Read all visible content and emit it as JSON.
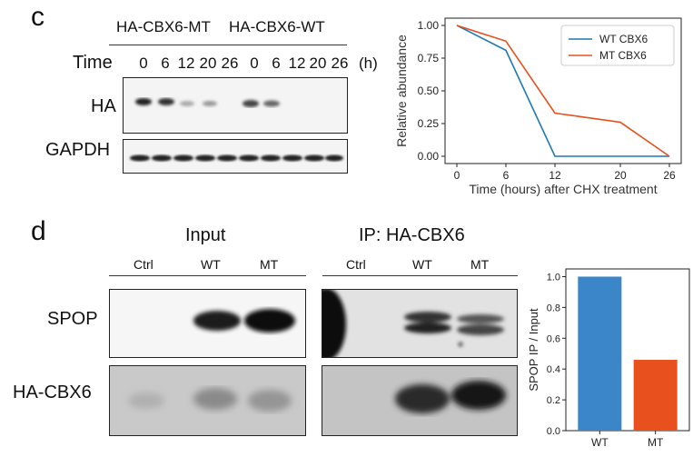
{
  "panel_c": {
    "label": "c",
    "groups": [
      "HA-CBX6-MT",
      "HA-CBX6-WT"
    ],
    "time_label": "Time",
    "times": [
      "0",
      "6",
      "12",
      "20",
      "26",
      "0",
      "6",
      "12",
      "20",
      "26"
    ],
    "unit": "(h)",
    "rows": [
      "HA",
      "GAPDH"
    ]
  },
  "panel_d": {
    "label": "d",
    "input_title": "Input",
    "ip_title": "IP: HA-CBX6",
    "lanes": [
      "Ctrl",
      "WT",
      "MT"
    ],
    "rows": [
      "SPOP",
      "HA-CBX6"
    ]
  },
  "chart_data": [
    {
      "type": "line",
      "title": "",
      "xlabel": "Time (hours) after CHX treatment",
      "ylabel": "Relative abundance",
      "x": [
        0,
        6,
        12,
        20,
        26
      ],
      "xticks": [
        "0",
        "6",
        "12",
        "20",
        "26"
      ],
      "yticks": [
        "0.00",
        "0.25",
        "0.50",
        "0.75",
        "1.00"
      ],
      "ylim": [
        0,
        1.0
      ],
      "legend": "top-right",
      "series": [
        {
          "name": "WT CBX6",
          "color": "#1f77b4",
          "values": [
            1.0,
            0.81,
            0.0,
            0.0,
            0.0
          ]
        },
        {
          "name": "MT CBX6",
          "color": "#e8501e",
          "values": [
            1.0,
            0.88,
            0.33,
            0.26,
            0.0
          ]
        }
      ]
    },
    {
      "type": "bar",
      "title": "",
      "xlabel": "",
      "ylabel": "SPOP IP / Input",
      "categories": [
        "WT",
        "MT"
      ],
      "values": [
        1.0,
        0.46
      ],
      "colors": [
        "#3a86c8",
        "#e8501e"
      ],
      "yticks": [
        "0.0",
        "0.2",
        "0.4",
        "0.6",
        "0.8",
        "1.0"
      ],
      "ylim": [
        0,
        1.05
      ]
    }
  ]
}
